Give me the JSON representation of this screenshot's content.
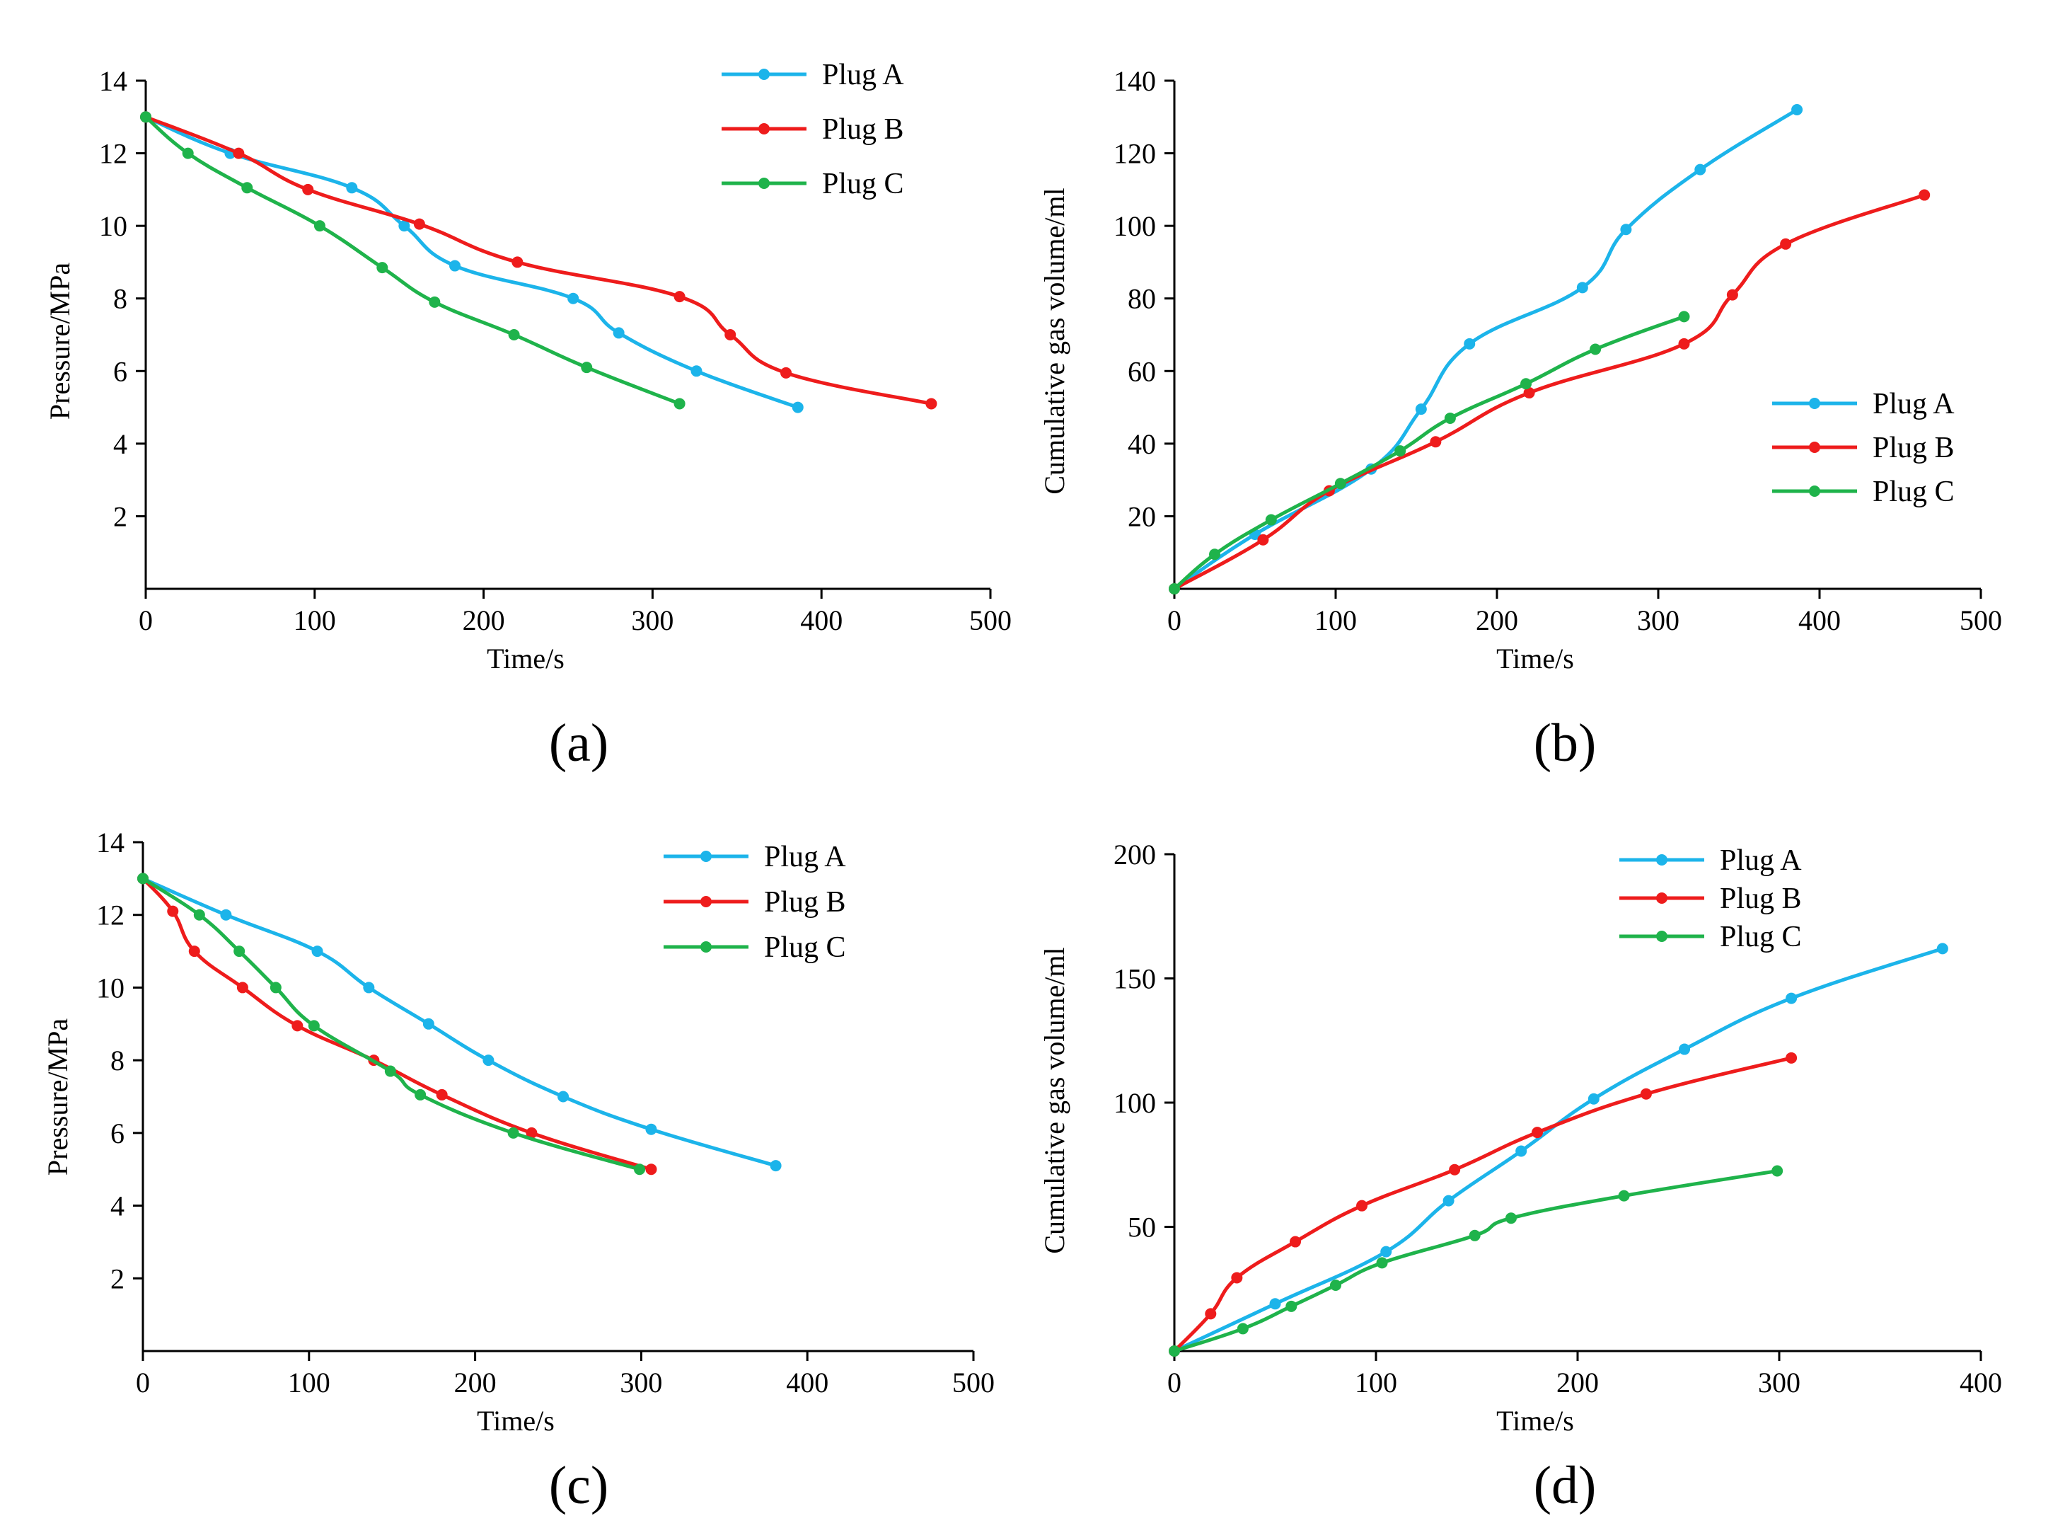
{
  "colors": {
    "plug_a": "#1cb4ea",
    "plug_b": "#ee1c1c",
    "plug_c": "#1fb34b",
    "axis": "#000000"
  },
  "chart_data": [
    {
      "id": "a",
      "type": "line",
      "caption": "(a)",
      "xlabel": "Time/s",
      "ylabel": "Pressure/MPa",
      "xlim": [
        0,
        500
      ],
      "ylim": [
        0,
        14
      ],
      "xticks": [
        0,
        100,
        200,
        300,
        400,
        500
      ],
      "yticks": [
        2,
        4,
        6,
        8,
        10,
        12,
        14
      ],
      "legend_position": "top-right",
      "series": [
        {
          "name": "Plug A",
          "color_key": "plug_a",
          "x": [
            0,
            50,
            122,
            153,
            183,
            253,
            280,
            326,
            386
          ],
          "y": [
            13,
            12,
            11.05,
            10,
            8.9,
            8,
            7.05,
            6,
            5
          ]
        },
        {
          "name": "Plug B",
          "color_key": "plug_b",
          "x": [
            0,
            55,
            96,
            162,
            220,
            316,
            346,
            379,
            465
          ],
          "y": [
            13,
            12,
            11,
            10.05,
            9,
            8.05,
            7,
            5.95,
            5.1
          ]
        },
        {
          "name": "Plug C",
          "color_key": "plug_c",
          "x": [
            0,
            25,
            60,
            103,
            140,
            171,
            218,
            261,
            316
          ],
          "y": [
            13,
            12,
            11.05,
            10,
            8.85,
            7.9,
            7,
            6.1,
            5.1
          ]
        }
      ]
    },
    {
      "id": "b",
      "type": "line",
      "caption": "(b)",
      "xlabel": "Time/s",
      "ylabel": "Cumulative gas volume/ml",
      "xlim": [
        0,
        500
      ],
      "ylim": [
        0,
        140
      ],
      "xticks": [
        0,
        100,
        200,
        300,
        400,
        500
      ],
      "yticks": [
        20,
        40,
        60,
        80,
        100,
        120,
        140
      ],
      "legend_position": "middle-right",
      "series": [
        {
          "name": "Plug A",
          "color_key": "plug_a",
          "x": [
            0,
            50,
            122,
            153,
            183,
            253,
            280,
            326,
            386
          ],
          "y": [
            0,
            15,
            33,
            49.5,
            67.5,
            83,
            99,
            115.5,
            132
          ]
        },
        {
          "name": "Plug B",
          "color_key": "plug_b",
          "x": [
            0,
            55,
            96,
            162,
            220,
            316,
            346,
            379,
            465
          ],
          "y": [
            0,
            13.5,
            27,
            40.5,
            54,
            67.5,
            81,
            95,
            108.5
          ]
        },
        {
          "name": "Plug C",
          "color_key": "plug_c",
          "x": [
            0,
            25,
            60,
            103,
            140,
            171,
            218,
            261,
            316
          ],
          "y": [
            0,
            9.5,
            19,
            29,
            38,
            47,
            56.5,
            66,
            75
          ]
        }
      ]
    },
    {
      "id": "c",
      "type": "line",
      "caption": "(c)",
      "xlabel": "Time/s",
      "ylabel": "Pressure/MPa",
      "xlim": [
        0,
        500
      ],
      "ylim": [
        0,
        14
      ],
      "xticks": [
        0,
        100,
        200,
        300,
        400,
        500
      ],
      "yticks": [
        2,
        4,
        6,
        8,
        10,
        12,
        14
      ],
      "legend_position": "top-right",
      "series": [
        {
          "name": "Plug A",
          "color_key": "plug_a",
          "x": [
            0,
            50,
            105,
            136,
            172,
            208,
            253,
            306,
            381
          ],
          "y": [
            13,
            12,
            11,
            10,
            9,
            8,
            7,
            6.1,
            5.1
          ]
        },
        {
          "name": "Plug B",
          "color_key": "plug_b",
          "x": [
            0,
            18,
            31,
            60,
            93,
            139,
            180,
            234,
            306
          ],
          "y": [
            13,
            12.1,
            11,
            10,
            8.95,
            8,
            7.05,
            6,
            5
          ]
        },
        {
          "name": "Plug C",
          "color_key": "plug_c",
          "x": [
            0,
            34,
            58,
            80,
            103,
            149,
            167,
            223,
            299
          ],
          "y": [
            13,
            12,
            11,
            10,
            8.95,
            7.7,
            7.05,
            6,
            5
          ]
        }
      ]
    },
    {
      "id": "d",
      "type": "line",
      "caption": "(d)",
      "xlabel": "Time/s",
      "ylabel": "Cumulative gas volume/ml",
      "xlim": [
        0,
        400
      ],
      "ylim": [
        0,
        200
      ],
      "xticks": [
        0,
        100,
        200,
        300,
        400
      ],
      "yticks": [
        50,
        100,
        150,
        200
      ],
      "legend_position": "top-right",
      "series": [
        {
          "name": "Plug A",
          "color_key": "plug_a",
          "x": [
            0,
            50,
            105,
            136,
            172,
            208,
            253,
            306,
            381
          ],
          "y": [
            0,
            19,
            40,
            60.5,
            80.5,
            101.5,
            121.5,
            142,
            162
          ]
        },
        {
          "name": "Plug B",
          "color_key": "plug_b",
          "x": [
            0,
            18,
            31,
            60,
            93,
            139,
            180,
            234,
            306
          ],
          "y": [
            0,
            15,
            29.5,
            44,
            58.5,
            73,
            88,
            103.5,
            118
          ]
        },
        {
          "name": "Plug C",
          "color_key": "plug_c",
          "x": [
            0,
            34,
            58,
            80,
            103,
            149,
            167,
            223,
            299
          ],
          "y": [
            0,
            9,
            18,
            26.5,
            35.5,
            46.5,
            53.5,
            62.5,
            72.5
          ]
        }
      ]
    }
  ]
}
